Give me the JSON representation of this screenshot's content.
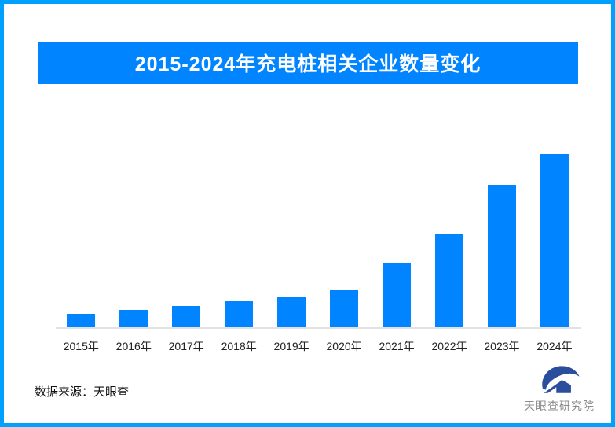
{
  "banner": {
    "title": "2015-2024年充电桩相关企业数量变化"
  },
  "chart_data": {
    "type": "bar",
    "title": "2015-2024年充电桩相关企业数量变化",
    "categories": [
      "2015年",
      "2016年",
      "2017年",
      "2018年",
      "2019年",
      "2020年",
      "2021年",
      "2022年",
      "2023年",
      "2024年"
    ],
    "values": [
      7.5,
      9.9,
      12.2,
      14.9,
      17.2,
      21.1,
      37.0,
      54.0,
      82.1,
      100
    ],
    "values_note": "No numeric y-axis, gridlines or data labels are shown in the image; values are relative bar heights with tallest bar (2024) = 100",
    "xlabel": "",
    "ylabel": "",
    "ylim": [
      0,
      100
    ],
    "grid": false,
    "legend": false,
    "bar_color": "#0084FF",
    "axis_line_color": "#E2E2E2"
  },
  "footer": {
    "source_label": "数据来源：天眼查"
  },
  "logo": {
    "text": "天眼查研究院",
    "icon": "tianyancha-eye-house-logo",
    "icon_color": "#2A4E9C",
    "text_color": "#8C8C8C"
  },
  "colors": {
    "accent_blue": "#0084FF",
    "frame_border_blue": "#00A0FF",
    "axis_line": "#E2E2E2",
    "title_text": "#FFFFFF"
  }
}
